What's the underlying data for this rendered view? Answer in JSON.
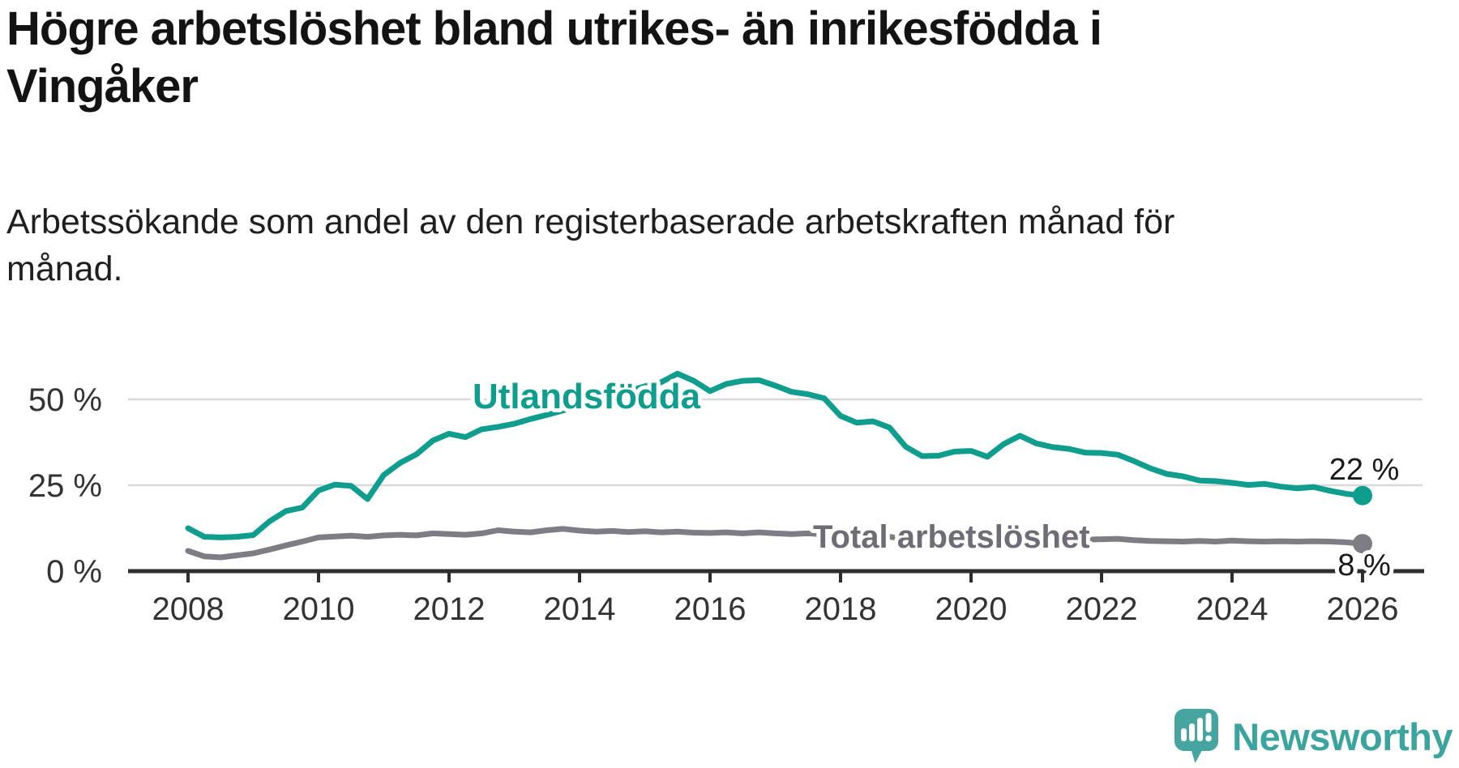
{
  "header": {
    "title": "Högre arbetslöshet bland utrikes- än inrikesfödda i Vingåker",
    "subtitle": "Arbetssökande som andel av den registerbaserade arbetskraften månad för månad."
  },
  "footer": {
    "brand": "Newsworthy",
    "logo_icon": "speech-bubble-bar-chart-exclamation"
  },
  "colors": {
    "background": "#ffffff",
    "title_text": "#131313",
    "axis_text": "#333333",
    "axis_line": "#2e2e2e",
    "gridline": "#d8d8d8",
    "teal_series": "#0f9d8d",
    "gray_series": "#7e7d84",
    "gray_label": "#6f6c75",
    "end_label_text": "#1a1a1a",
    "logo_teal": "#46a5a0",
    "wordmark_teal": "#3ba49f"
  },
  "chart_data": {
    "type": "line",
    "title": "Högre arbetslöshet bland utrikes- än inrikesfödda i Vingåker",
    "subtitle": "Arbetssökande som andel av den registerbaserade arbetskraften månad för månad.",
    "unit": "%",
    "grid": "horizontal",
    "legend": "inline-labels",
    "x_axis": {
      "label": "",
      "ticks": [
        2008,
        2010,
        2012,
        2014,
        2016,
        2018,
        2020,
        2022,
        2024,
        2026
      ],
      "range": [
        2007.9,
        2026.9
      ]
    },
    "y_axis": {
      "label": "",
      "ticks": [
        0,
        25,
        50
      ],
      "tick_labels": [
        "0 %",
        "25 %",
        "50 %"
      ],
      "range": [
        0,
        60
      ]
    },
    "series": [
      {
        "name": "Total arbetslöshet",
        "color": "#7e7d84",
        "label_color": "#6f6c75",
        "end_label": "8 %",
        "end_value": 8,
        "points": [
          [
            2008.0,
            5.9
          ],
          [
            2008.25,
            4.3
          ],
          [
            2008.5,
            4.0
          ],
          [
            2008.75,
            4.6
          ],
          [
            2009.0,
            5.2
          ],
          [
            2009.25,
            6.3
          ],
          [
            2009.5,
            7.5
          ],
          [
            2009.75,
            8.6
          ],
          [
            2010.0,
            9.8
          ],
          [
            2010.25,
            10.1
          ],
          [
            2010.5,
            10.3
          ],
          [
            2010.75,
            10.0
          ],
          [
            2011.0,
            10.4
          ],
          [
            2011.25,
            10.6
          ],
          [
            2011.5,
            10.4
          ],
          [
            2011.75,
            11.0
          ],
          [
            2012.0,
            10.8
          ],
          [
            2012.25,
            10.6
          ],
          [
            2012.5,
            11.0
          ],
          [
            2012.75,
            11.9
          ],
          [
            2013.0,
            11.5
          ],
          [
            2013.25,
            11.3
          ],
          [
            2013.5,
            11.9
          ],
          [
            2013.75,
            12.3
          ],
          [
            2014.0,
            11.8
          ],
          [
            2014.25,
            11.5
          ],
          [
            2014.5,
            11.7
          ],
          [
            2014.75,
            11.4
          ],
          [
            2015.0,
            11.6
          ],
          [
            2015.25,
            11.3
          ],
          [
            2015.5,
            11.5
          ],
          [
            2015.75,
            11.2
          ],
          [
            2016.0,
            11.1
          ],
          [
            2016.25,
            11.3
          ],
          [
            2016.5,
            11.0
          ],
          [
            2016.75,
            11.3
          ],
          [
            2017.0,
            11.0
          ],
          [
            2017.25,
            10.8
          ],
          [
            2017.5,
            11.0
          ],
          [
            2017.75,
            10.7
          ],
          [
            2018.0,
            10.5
          ],
          [
            2018.25,
            10.3
          ],
          [
            2018.5,
            10.4
          ],
          [
            2018.75,
            10.0
          ],
          [
            2019.0,
            9.3
          ],
          [
            2019.25,
            9.0
          ],
          [
            2019.5,
            8.8
          ],
          [
            2019.75,
            9.0
          ],
          [
            2020.0,
            9.2
          ],
          [
            2020.25,
            9.0
          ],
          [
            2020.5,
            9.8
          ],
          [
            2020.75,
            10.2
          ],
          [
            2021.0,
            9.8
          ],
          [
            2021.25,
            9.6
          ],
          [
            2021.5,
            9.4
          ],
          [
            2021.75,
            9.2
          ],
          [
            2022.0,
            9.3
          ],
          [
            2022.25,
            9.4
          ],
          [
            2022.5,
            9.0
          ],
          [
            2022.75,
            8.8
          ],
          [
            2023.0,
            8.7
          ],
          [
            2023.25,
            8.6
          ],
          [
            2023.5,
            8.8
          ],
          [
            2023.75,
            8.6
          ],
          [
            2024.0,
            8.9
          ],
          [
            2024.25,
            8.7
          ],
          [
            2024.5,
            8.6
          ],
          [
            2024.75,
            8.7
          ],
          [
            2025.0,
            8.6
          ],
          [
            2025.25,
            8.7
          ],
          [
            2025.5,
            8.6
          ],
          [
            2025.75,
            8.4
          ],
          [
            2026.0,
            8.0
          ]
        ]
      },
      {
        "name": "Utlandsfödda",
        "color": "#0f9d8d",
        "label_color": "#0f9d8d",
        "end_label": "22 %",
        "end_value": 22,
        "points": [
          [
            2008.0,
            12.5
          ],
          [
            2008.25,
            10.0
          ],
          [
            2008.5,
            9.8
          ],
          [
            2008.75,
            10.0
          ],
          [
            2009.0,
            10.5
          ],
          [
            2009.25,
            14.5
          ],
          [
            2009.5,
            17.5
          ],
          [
            2009.75,
            18.5
          ],
          [
            2010.0,
            23.5
          ],
          [
            2010.25,
            25.2
          ],
          [
            2010.5,
            24.8
          ],
          [
            2010.75,
            21.0
          ],
          [
            2011.0,
            28.0
          ],
          [
            2011.25,
            31.5
          ],
          [
            2011.5,
            34.0
          ],
          [
            2011.75,
            38.0
          ],
          [
            2012.0,
            40.0
          ],
          [
            2012.25,
            39.0
          ],
          [
            2012.5,
            41.3
          ],
          [
            2012.75,
            42.0
          ],
          [
            2013.0,
            42.9
          ],
          [
            2013.25,
            44.3
          ],
          [
            2013.5,
            45.5
          ],
          [
            2013.75,
            46.8
          ],
          [
            2014.0,
            48.2
          ],
          [
            2014.25,
            49.6
          ],
          [
            2014.5,
            51.0
          ],
          [
            2014.75,
            52.4
          ],
          [
            2015.0,
            53.8
          ],
          [
            2015.25,
            55.0
          ],
          [
            2015.5,
            57.5
          ],
          [
            2015.75,
            55.4
          ],
          [
            2016.0,
            52.4
          ],
          [
            2016.25,
            54.5
          ],
          [
            2016.5,
            55.4
          ],
          [
            2016.75,
            55.6
          ],
          [
            2017.0,
            54.0
          ],
          [
            2017.25,
            52.2
          ],
          [
            2017.5,
            51.5
          ],
          [
            2017.75,
            50.3
          ],
          [
            2018.0,
            45.2
          ],
          [
            2018.25,
            43.2
          ],
          [
            2018.5,
            43.6
          ],
          [
            2018.75,
            41.8
          ],
          [
            2019.0,
            36.2
          ],
          [
            2019.25,
            33.5
          ],
          [
            2019.5,
            33.6
          ],
          [
            2019.75,
            34.8
          ],
          [
            2020.0,
            35.0
          ],
          [
            2020.25,
            33.3
          ],
          [
            2020.5,
            37.0
          ],
          [
            2020.75,
            39.4
          ],
          [
            2021.0,
            37.2
          ],
          [
            2021.25,
            36.1
          ],
          [
            2021.5,
            35.6
          ],
          [
            2021.75,
            34.5
          ],
          [
            2022.0,
            34.4
          ],
          [
            2022.25,
            33.9
          ],
          [
            2022.5,
            32.0
          ],
          [
            2022.75,
            29.9
          ],
          [
            2023.0,
            28.3
          ],
          [
            2023.25,
            27.6
          ],
          [
            2023.5,
            26.4
          ],
          [
            2023.75,
            26.2
          ],
          [
            2024.0,
            25.7
          ],
          [
            2024.25,
            25.1
          ],
          [
            2024.5,
            25.4
          ],
          [
            2024.75,
            24.6
          ],
          [
            2025.0,
            24.1
          ],
          [
            2025.25,
            24.5
          ],
          [
            2025.5,
            23.4
          ],
          [
            2025.75,
            22.5
          ],
          [
            2026.0,
            22.0
          ]
        ]
      }
    ]
  }
}
